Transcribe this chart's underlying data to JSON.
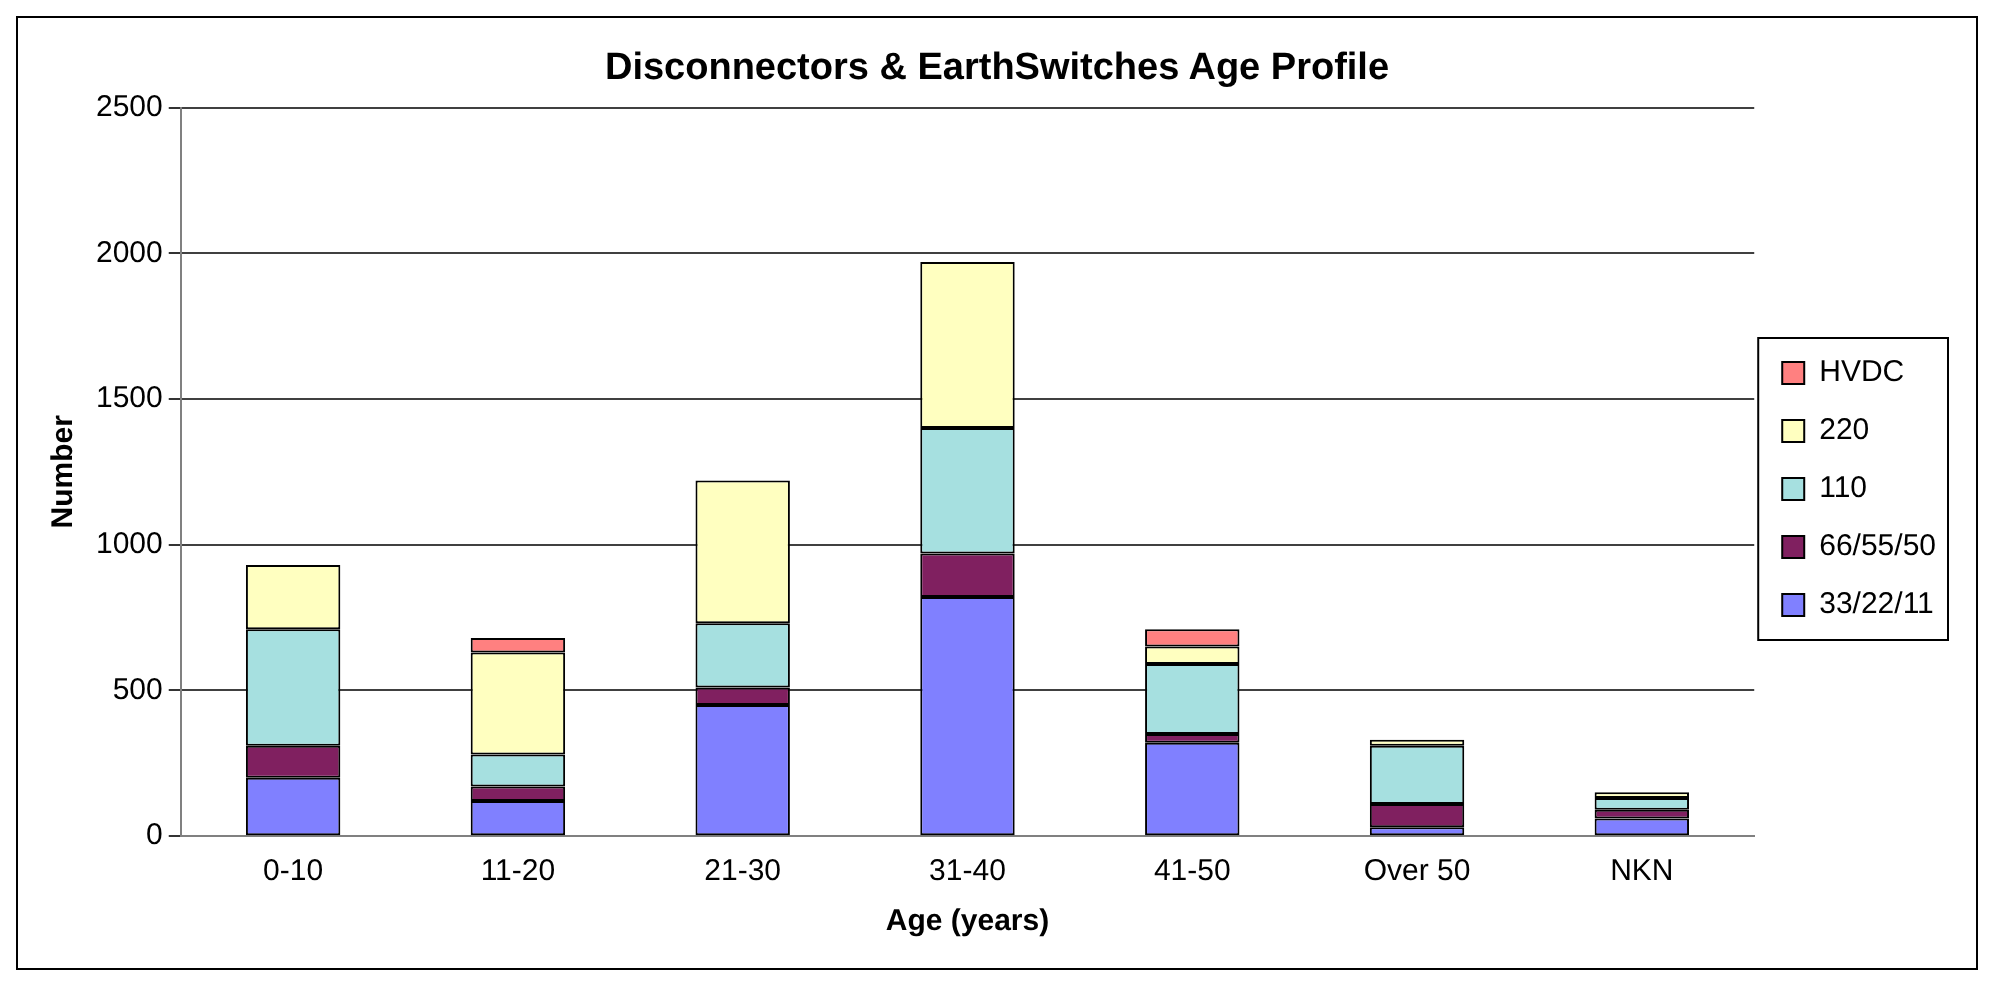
{
  "chart_data": {
    "type": "bar",
    "title": "Disconnectors & EarthSwitches Age Profile",
    "xlabel": "Age (years)",
    "ylabel": "Number",
    "categories": [
      "0-10",
      "11-20",
      "21-30",
      "31-40",
      "41-50",
      "Over 50",
      "NKN"
    ],
    "stacked": true,
    "ylim": [
      0,
      2500
    ],
    "yticks": [
      0,
      500,
      1000,
      1500,
      2000,
      2500
    ],
    "grid": "y",
    "legend": "right",
    "series": [
      {
        "name": "33/22/11",
        "color": "#8080ff",
        "values": [
          200,
          120,
          450,
          820,
          320,
          30,
          60
        ]
      },
      {
        "name": "66/55/50",
        "color": "#802060",
        "values": [
          110,
          50,
          60,
          150,
          30,
          80,
          30
        ]
      },
      {
        "name": "110",
        "color": "#a6e0e0",
        "values": [
          400,
          110,
          220,
          430,
          240,
          200,
          40
        ]
      },
      {
        "name": "220",
        "color": "#ffffc0",
        "values": [
          220,
          350,
          490,
          570,
          60,
          20,
          20
        ]
      },
      {
        "name": "HVDC",
        "color": "#ff8080",
        "values": [
          null,
          50,
          null,
          null,
          60,
          null,
          null
        ]
      }
    ]
  }
}
